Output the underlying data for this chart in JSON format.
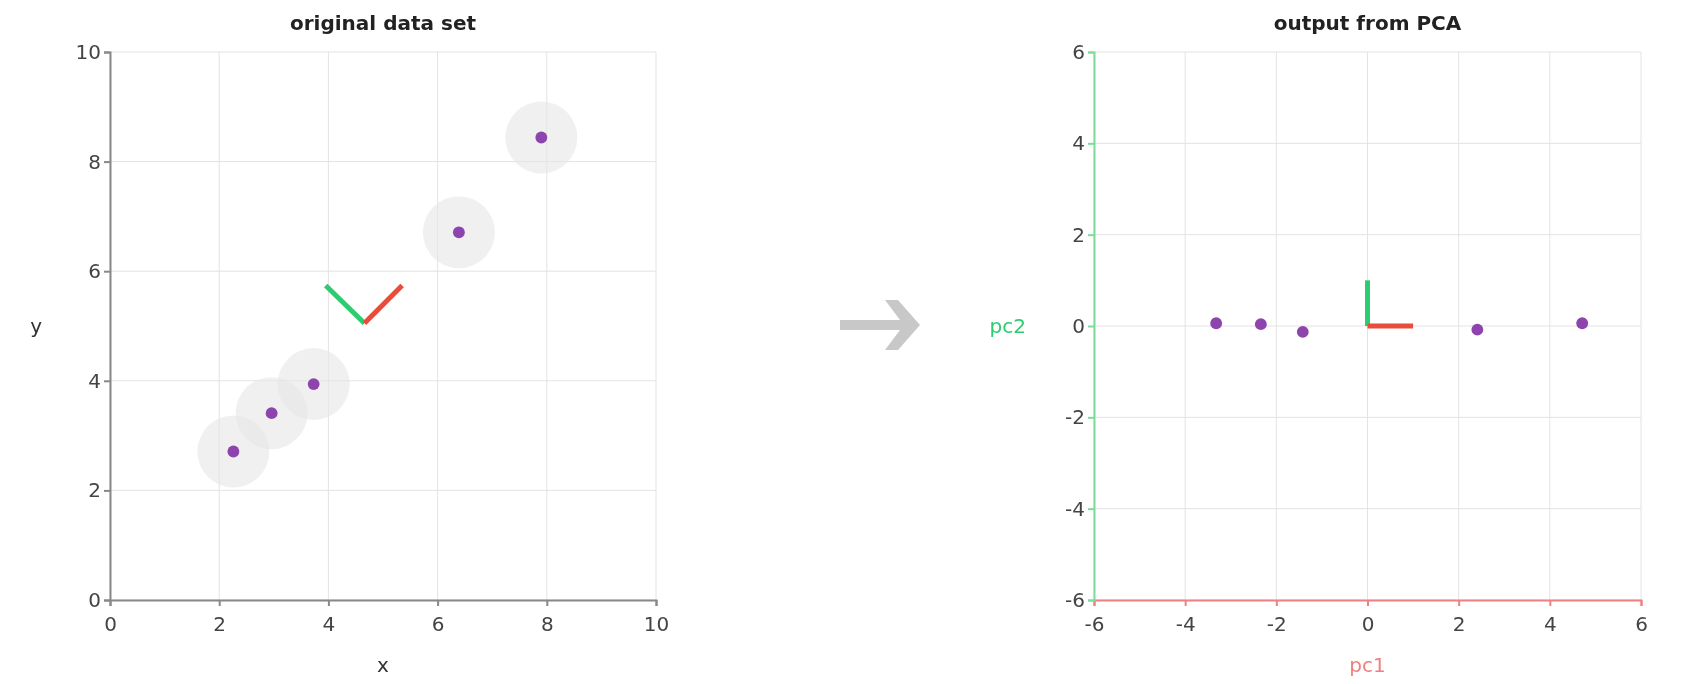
{
  "chart_data": [
    {
      "type": "scatter",
      "title": "original data set",
      "xlabel": "x",
      "ylabel": "y",
      "xlim": [
        0,
        10
      ],
      "ylim": [
        0,
        10
      ],
      "xticks": [
        0,
        2,
        4,
        6,
        8,
        10
      ],
      "yticks": [
        0,
        2,
        4,
        6,
        8,
        10
      ],
      "grid": true,
      "series": [
        {
          "type": "bubble",
          "color": "#e6e6e6",
          "x": [
            2.26,
            2.96,
            3.73,
            6.39,
            7.9
          ],
          "values": [
            2.71,
            3.41,
            3.94,
            6.71,
            8.44
          ],
          "sizes": [
            1,
            1,
            1,
            1,
            1
          ]
        },
        {
          "color": "#8e44ad",
          "marker": "circle",
          "x": [
            2.26,
            2.96,
            3.73,
            6.39,
            7.9
          ],
          "values": [
            2.71,
            3.41,
            3.94,
            6.71,
            8.44
          ]
        },
        {
          "type": "line",
          "color": "#2ecc71",
          "x": [
            4.66,
            3.95
          ],
          "values": [
            5.05,
            5.74
          ]
        },
        {
          "type": "line",
          "color": "#e74c3c",
          "x": [
            4.66,
            5.35
          ],
          "values": [
            5.05,
            5.74
          ]
        }
      ]
    },
    {
      "type": "scatter",
      "title": "output from PCA",
      "xlabel": "pc1",
      "ylabel": "pc2",
      "xlim": [
        -6,
        6
      ],
      "ylim": [
        -6,
        6
      ],
      "xticks": [
        -6,
        -4,
        -2,
        0,
        2,
        4,
        6
      ],
      "yticks": [
        -6,
        -4,
        -2,
        0,
        2,
        4,
        6
      ],
      "grid": true,
      "series": [
        {
          "color": "#8e44ad",
          "marker": "circle",
          "x": [
            -3.32,
            -2.34,
            -1.42,
            2.41,
            4.71
          ],
          "values": [
            0.06,
            0.04,
            -0.13,
            -0.08,
            0.06
          ]
        },
        {
          "type": "line",
          "color": "#2ecc71",
          "x": [
            0,
            0
          ],
          "values": [
            0,
            1
          ]
        },
        {
          "type": "line",
          "color": "#e74c3c",
          "x": [
            0,
            1
          ],
          "values": [
            0,
            0
          ]
        }
      ]
    }
  ]
}
